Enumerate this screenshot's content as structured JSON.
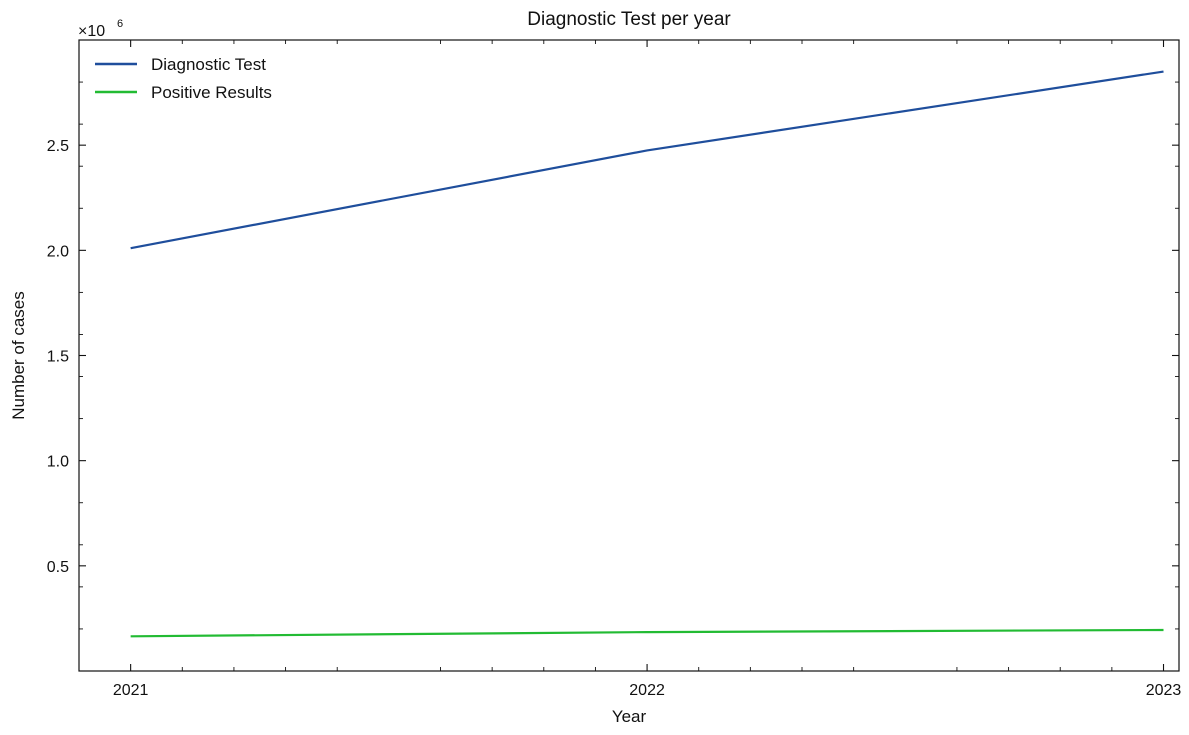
{
  "chart_data": {
    "type": "line",
    "title": "Diagnostic Test per year",
    "xlabel": "Year",
    "ylabel": "Number of cases",
    "y_offset_base": "×10",
    "y_offset_exponent": "6",
    "y_multiplier": 1000000,
    "x": [
      2021,
      2022,
      2023
    ],
    "x_tick_labels": [
      "2021",
      "2022",
      "2023"
    ],
    "xlim": [
      2020.9,
      2023.03
    ],
    "y_ticks": [
      0.5,
      1.0,
      1.5,
      2.0,
      2.5
    ],
    "y_tick_labels": [
      "0.5",
      "1.0",
      "1.5",
      "2.0",
      "2.5"
    ],
    "ylim": [
      0.0,
      3.0
    ],
    "grid": false,
    "legend_position": "top-left",
    "series": [
      {
        "name": "Diagnostic Test",
        "color": "#1f4e9c",
        "values": [
          2010000,
          2475000,
          2850000
        ]
      },
      {
        "name": "Positive Results",
        "color": "#22bb33",
        "values": [
          165000,
          185000,
          195000
        ]
      }
    ]
  }
}
